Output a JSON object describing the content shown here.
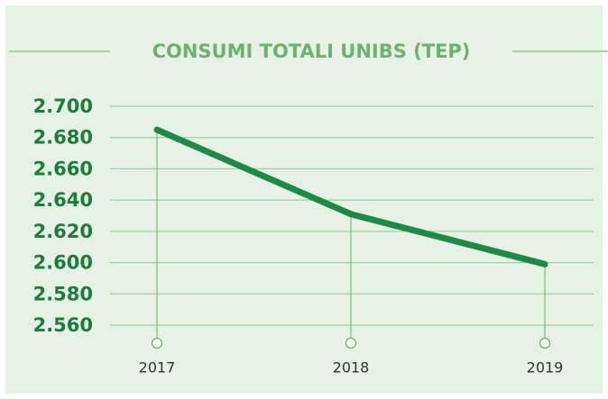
{
  "chart_data": {
    "type": "line",
    "title": "CONSUMI TOTALI UNIBS (TEP)",
    "categories": [
      "2017",
      "2018",
      "2019"
    ],
    "series": [
      {
        "name": "Consumi",
        "color": "#1e8a45",
        "values": [
          2685,
          2631,
          2599
        ]
      }
    ],
    "ylim": [
      2560,
      2700
    ],
    "yticks": [
      {
        "value": 2560,
        "label": "2.560"
      },
      {
        "value": 2580,
        "label": "2.580"
      },
      {
        "value": 2600,
        "label": "2.600"
      },
      {
        "value": 2620,
        "label": "2.620"
      },
      {
        "value": 2640,
        "label": "2.640"
      },
      {
        "value": 2660,
        "label": "2.660"
      },
      {
        "value": 2680,
        "label": "2.680"
      },
      {
        "value": 2700,
        "label": "2.700"
      }
    ],
    "grid": true
  }
}
